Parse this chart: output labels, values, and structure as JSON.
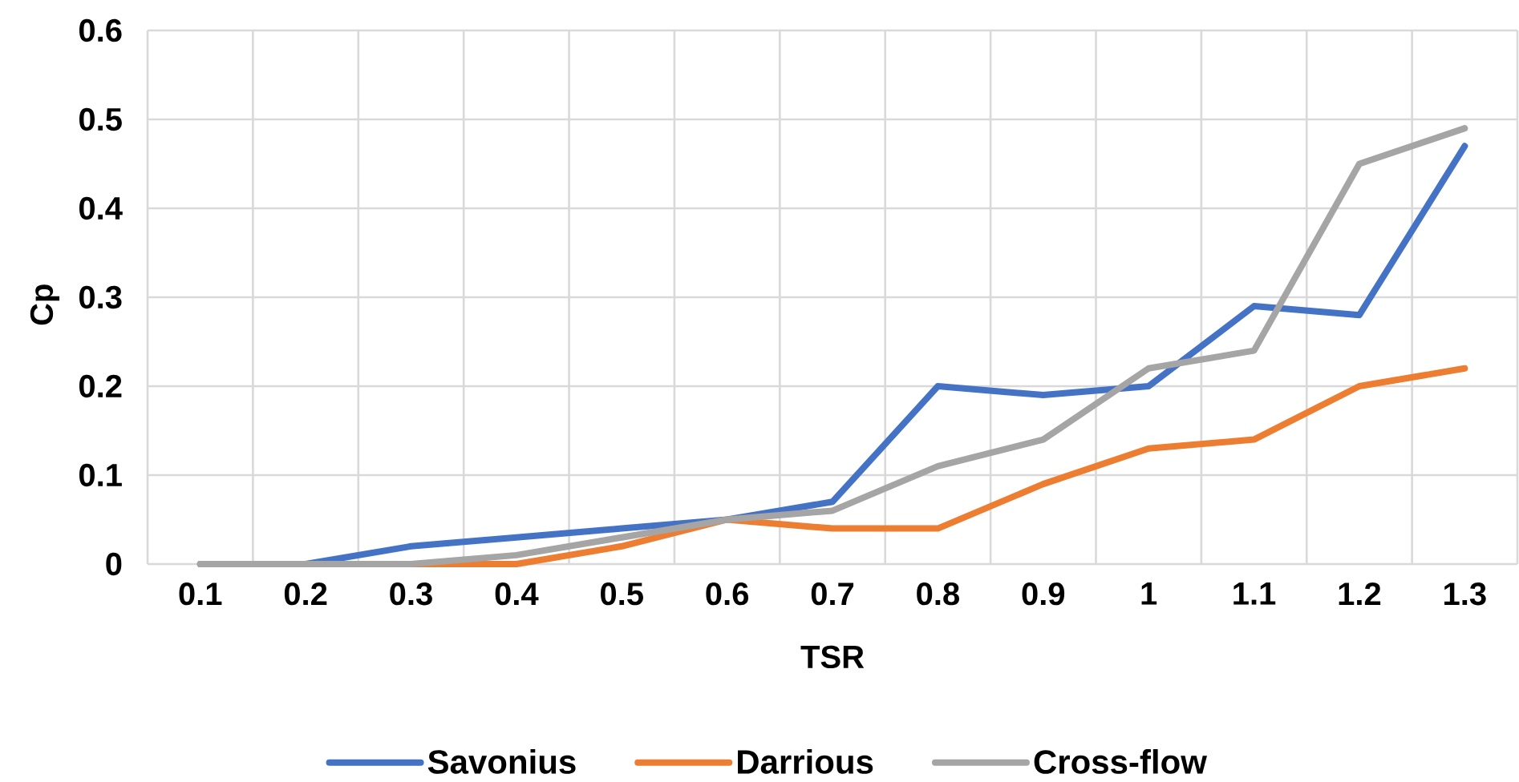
{
  "chart_data": {
    "type": "line",
    "xlabel": "TSR",
    "ylabel": "Cp",
    "categories": [
      "0.1",
      "0.2",
      "0.3",
      "0.4",
      "0.5",
      "0.6",
      "0.7",
      "0.8",
      "0.9",
      "1",
      "1.1",
      "1.2",
      "1.3"
    ],
    "series": [
      {
        "name": "Savonius",
        "color": "#4472c4",
        "values": [
          0,
          0,
          0.02,
          0.03,
          0.04,
          0.05,
          0.07,
          0.2,
          0.19,
          0.2,
          0.29,
          0.28,
          0.47
        ]
      },
      {
        "name": "Darrious",
        "color": "#ed7d31",
        "values": [
          0,
          0,
          0,
          0,
          0.02,
          0.05,
          0.04,
          0.04,
          0.09,
          0.13,
          0.14,
          0.2,
          0.22
        ]
      },
      {
        "name": "Cross-flow",
        "color": "#a5a5a5",
        "values": [
          0,
          0,
          0,
          0.01,
          0.03,
          0.05,
          0.06,
          0.11,
          0.14,
          0.22,
          0.24,
          0.45,
          0.49
        ]
      }
    ],
    "ylim": [
      0,
      0.6
    ],
    "yticks": [
      0,
      0.1,
      0.2,
      0.3,
      0.4,
      0.5,
      0.6
    ],
    "grid": true,
    "legend": "bottom",
    "marker": "none",
    "line_style": "solid"
  }
}
